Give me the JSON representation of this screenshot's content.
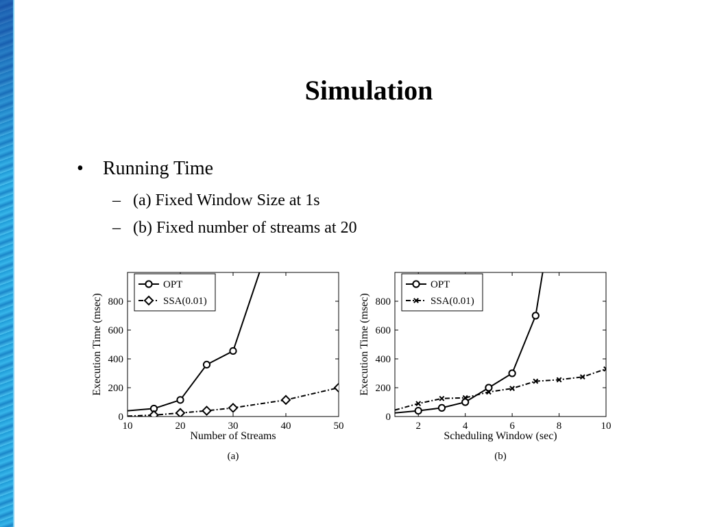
{
  "slide": {
    "title": "Simulation",
    "bullet": "Running Time",
    "bullet_marker": "•",
    "dash_marker": "–",
    "subbullets": [
      "(a) Fixed Window Size at 1s",
      "(b) Fixed number of streams at 20"
    ]
  },
  "chart_data": [
    {
      "type": "line",
      "caption": "(a)",
      "xlabel": "Number of Streams",
      "ylabel": "Execution Time (msec)",
      "xlim": [
        10,
        50
      ],
      "ylim": [
        0,
        1000
      ],
      "xticks": [
        10,
        20,
        30,
        40,
        50
      ],
      "yticks": [
        0,
        200,
        400,
        600,
        800
      ],
      "legend_position": "top-left",
      "grid": false,
      "series": [
        {
          "name": "OPT",
          "marker": "circle",
          "dash": "solid",
          "x": [
            10,
            15,
            20,
            25,
            30,
            35
          ],
          "y": [
            40,
            55,
            115,
            360,
            455,
            1000
          ]
        },
        {
          "name": "SSA(0.01)",
          "marker": "diamond",
          "dash": "dashdot",
          "x": [
            10,
            15,
            20,
            25,
            30,
            40,
            50
          ],
          "y": [
            3,
            10,
            25,
            40,
            60,
            115,
            200
          ]
        }
      ]
    },
    {
      "type": "line",
      "caption": "(b)",
      "xlabel": "Scheduling Window (sec)",
      "ylabel": "Execution Time (msec)",
      "xlim": [
        1,
        10
      ],
      "ylim": [
        0,
        1000
      ],
      "xticks": [
        2,
        4,
        6,
        8,
        10
      ],
      "yticks": [
        0,
        200,
        400,
        600,
        800
      ],
      "legend_position": "top-left",
      "grid": false,
      "series": [
        {
          "name": "OPT",
          "marker": "circle",
          "dash": "solid",
          "x": [
            1,
            2,
            3,
            4,
            5,
            6,
            7,
            7.3
          ],
          "y": [
            25,
            40,
            60,
            100,
            200,
            300,
            700,
            1000
          ]
        },
        {
          "name": "SSA(0.01)",
          "marker": "x",
          "dash": "dashdot",
          "x": [
            1,
            2,
            3,
            4,
            5,
            6,
            7,
            8,
            9,
            10
          ],
          "y": [
            45,
            90,
            125,
            130,
            170,
            195,
            245,
            255,
            275,
            330
          ]
        }
      ]
    }
  ]
}
